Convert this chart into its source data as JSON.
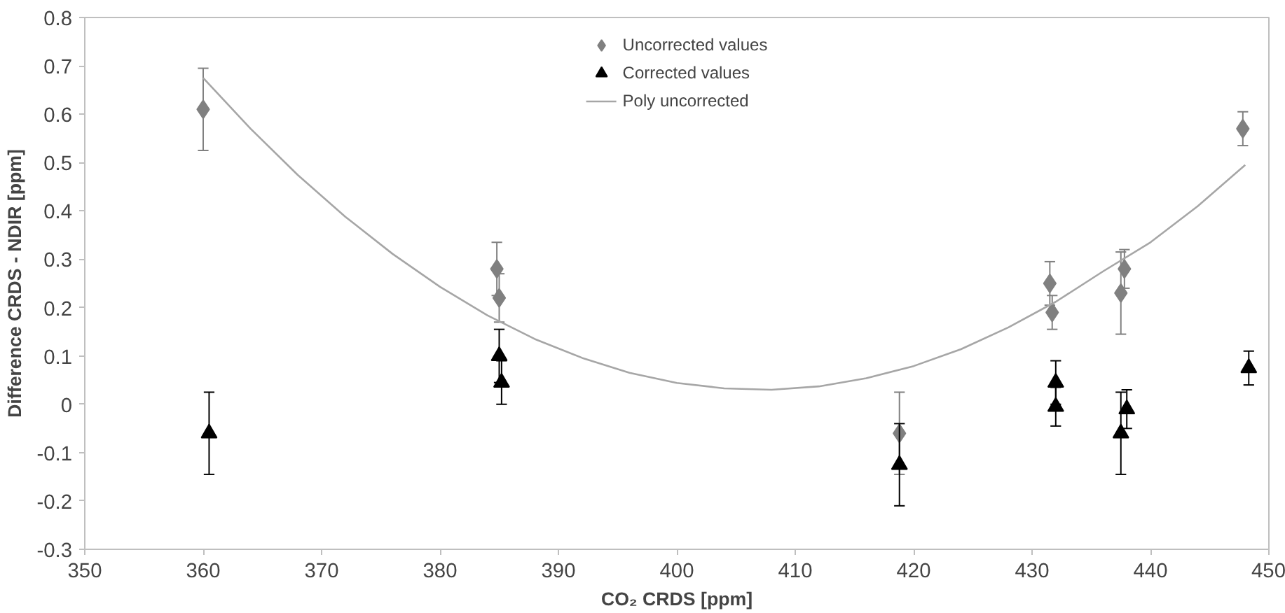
{
  "chart_data": {
    "type": "scatter",
    "xlabel": "CO₂ CRDS [ppm]",
    "ylabel": "Difference CRDS - NDIR [ppm]",
    "xlim": [
      350,
      450
    ],
    "xticks": [
      350,
      360,
      370,
      380,
      390,
      400,
      410,
      420,
      430,
      440,
      450
    ],
    "ylim": [
      -0.3,
      0.8
    ],
    "yticks": [
      -0.3,
      -0.2,
      -0.1,
      0,
      0.1,
      0.2,
      0.3,
      0.4,
      0.5,
      0.6,
      0.7,
      0.8
    ],
    "grid": false,
    "legend": "top",
    "series": [
      {
        "name": "Uncorrected values",
        "marker": "diamond",
        "color": "#808080",
        "x": [
          360,
          384.8,
          385,
          418.8,
          431.5,
          431.7,
          437.5,
          437.8,
          447.8
        ],
        "values": [
          0.61,
          0.28,
          0.22,
          -0.06,
          0.25,
          0.19,
          0.23,
          0.28,
          0.57
        ],
        "errors": [
          0.085,
          0.055,
          0.05,
          0.085,
          0.045,
          0.035,
          0.085,
          0.04,
          0.035
        ]
      },
      {
        "name": "Corrected values",
        "marker": "triangle",
        "color": "#000000",
        "x": [
          360.5,
          385,
          385.2,
          418.8,
          432,
          432,
          437.5,
          438,
          448.3
        ],
        "values": [
          -0.06,
          0.1,
          0.045,
          -0.125,
          0.045,
          -0.005,
          -0.06,
          -0.01,
          0.075
        ],
        "errors": [
          0.085,
          0.055,
          0.045,
          0.085,
          0.045,
          0.04,
          0.085,
          0.04,
          0.035
        ]
      },
      {
        "name": "Poly uncorrected",
        "type": "line",
        "marker": "none",
        "line_style": "solid",
        "color": "#a6a6a6",
        "x": [
          360,
          364,
          368,
          372,
          376,
          380,
          384,
          388,
          392,
          396,
          400,
          404,
          408,
          412,
          416,
          420,
          424,
          428,
          432,
          436,
          440,
          444,
          448
        ],
        "values": [
          0.675,
          0.57,
          0.474,
          0.388,
          0.311,
          0.243,
          0.184,
          0.135,
          0.096,
          0.065,
          0.044,
          0.033,
          0.03,
          0.037,
          0.054,
          0.079,
          0.114,
          0.159,
          0.212,
          0.275,
          0.335,
          0.41,
          0.495
        ]
      }
    ]
  }
}
